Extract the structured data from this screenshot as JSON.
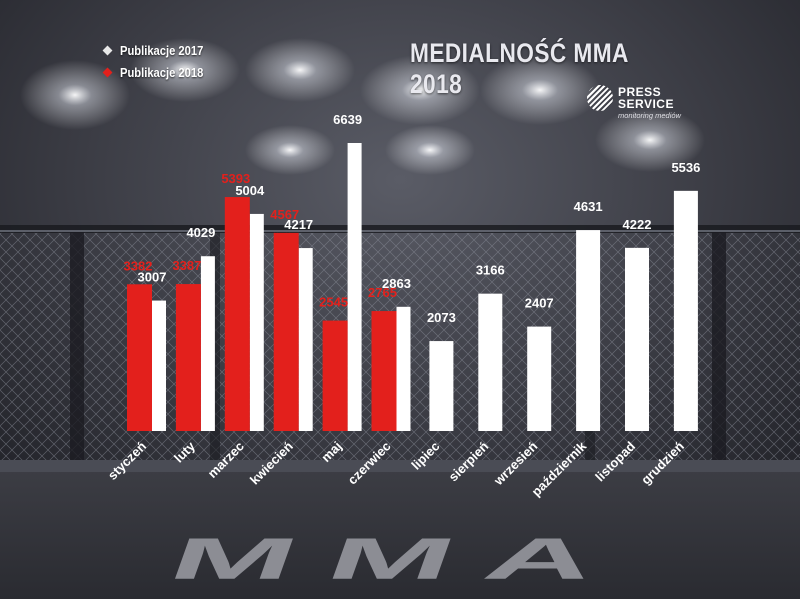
{
  "title": "MEDIALNOŚĆ MMA 2018",
  "legend": [
    {
      "label": "Publikacje 2017",
      "color": "#e8e8e8"
    },
    {
      "label": "Publikacje 2018",
      "color": "#e3201c"
    }
  ],
  "logo": {
    "line1": "PRESS",
    "line2": "SERVICE",
    "line3": "monitoring mediów"
  },
  "background_text": "MMA",
  "colors": {
    "bar_2017": "#ffffff",
    "bar_2018": "#e3201c",
    "label_2017": "#ffffff",
    "label_2018": "#e3201c"
  },
  "chart_data": {
    "type": "bar",
    "title": "MEDIALNOŚĆ MMA 2018",
    "categories": [
      "styczeń",
      "luty",
      "marzec",
      "kwiecień",
      "maj",
      "czerwiec",
      "lipiec",
      "sierpień",
      "wrzesień",
      "październik",
      "listopad",
      "grudzień"
    ],
    "series": [
      {
        "name": "Publikacje 2017",
        "values": [
          3007,
          4029,
          5004,
          4217,
          6639,
          2863,
          2073,
          3166,
          2407,
          4631,
          4222,
          5536
        ]
      },
      {
        "name": "Publikacje 2018",
        "values": [
          3382,
          3387,
          5393,
          4567,
          2545,
          2765,
          null,
          null,
          null,
          null,
          null,
          null
        ]
      }
    ],
    "ylim": [
      0,
      7000
    ],
    "grid": false,
    "legend_position": "top-left",
    "data_labels": true
  }
}
